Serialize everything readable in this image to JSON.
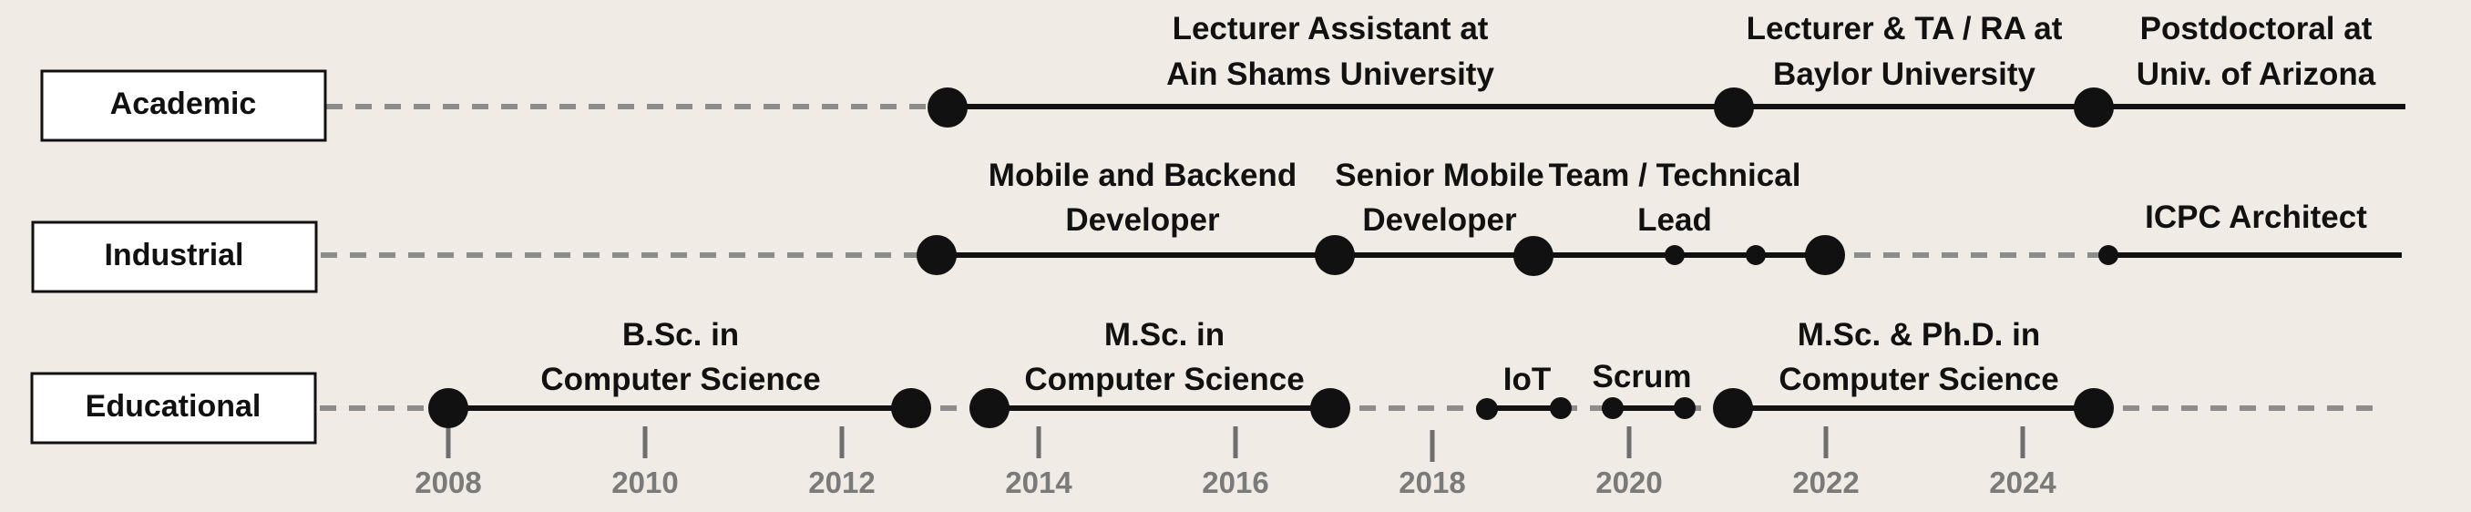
{
  "lanes": [
    {
      "key": "academic",
      "label": "Academic"
    },
    {
      "key": "industrial",
      "label": "Industrial"
    },
    {
      "key": "educational",
      "label": "Educational"
    }
  ],
  "years": [
    "2008",
    "2010",
    "2012",
    "2014",
    "2016",
    "2018",
    "2020",
    "2022",
    "2024"
  ],
  "academic": {
    "lecturer_assistant": [
      "Lecturer Assistant at",
      "Ain Shams University"
    ],
    "lecturer_ta_ra": [
      "Lecturer & TA / RA at",
      "Baylor University"
    ],
    "postdoctoral": [
      "Postdoctoral at",
      "Univ. of Arizona"
    ]
  },
  "industrial": {
    "mobile_backend": [
      "Mobile and Backend",
      "Developer"
    ],
    "senior_mobile": [
      "Senior Mobile",
      "Developer"
    ],
    "team_lead": [
      "Team / Technical",
      "Lead"
    ],
    "icpc": [
      "ICPC Architect"
    ]
  },
  "educational": {
    "bsc": [
      "B.Sc. in",
      "Computer Science"
    ],
    "msc": [
      "M.Sc. in",
      "Computer Science"
    ],
    "iot": [
      "IoT"
    ],
    "scrum": [
      "Scrum"
    ],
    "msc_phd": [
      "M.Sc. & Ph.D. in",
      "Computer Science"
    ]
  }
}
